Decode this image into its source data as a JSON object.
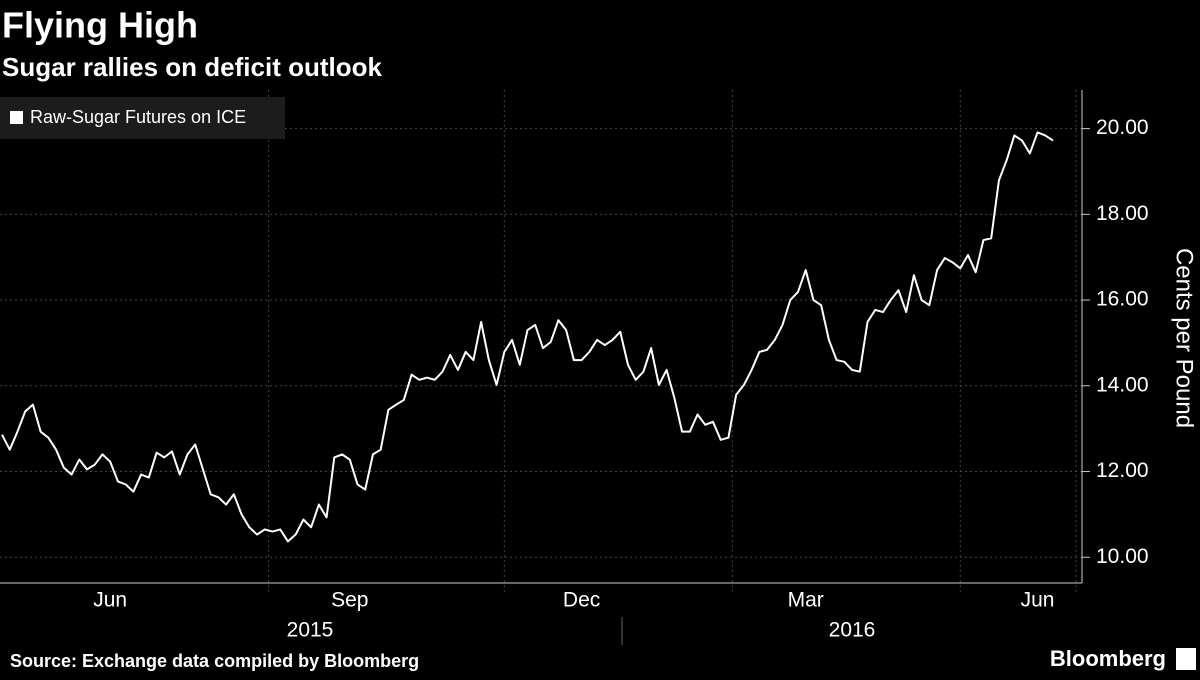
{
  "chart_data": {
    "type": "line",
    "title": "Flying High",
    "subtitle": "Sugar rallies on deficit outlook",
    "y_label": "Cents per Pound",
    "source": "Source: Exchange data compiled by Bloomberg",
    "brand": "Bloomberg",
    "x_group_labels": [
      "2015",
      "2016"
    ],
    "categories": [
      null,
      null,
      null,
      null,
      null,
      null,
      null,
      null,
      null,
      null,
      null,
      null,
      null,
      null,
      "Jun",
      null,
      null,
      null,
      null,
      null,
      null,
      null,
      null,
      null,
      null,
      null,
      null,
      null,
      null,
      null,
      null,
      null,
      null,
      null,
      null,
      null,
      null,
      null,
      null,
      null,
      null,
      null,
      null,
      null,
      null,
      "Sep",
      null,
      null,
      null,
      null,
      null,
      null,
      null,
      null,
      null,
      null,
      null,
      null,
      null,
      null,
      null,
      null,
      null,
      null,
      null,
      null,
      null,
      null,
      null,
      null,
      null,
      null,
      null,
      null,
      null,
      "Dec",
      null,
      null,
      null,
      null,
      null,
      null,
      null,
      null,
      null,
      null,
      null,
      null,
      null,
      null,
      null,
      null,
      null,
      null,
      null,
      null,
      null,
      null,
      null,
      null,
      null,
      null,
      null,
      null,
      "Mar",
      null,
      null,
      null,
      null,
      null,
      null,
      null,
      null,
      null,
      null,
      null,
      null,
      null,
      null,
      null,
      null,
      null,
      null,
      null,
      null,
      null,
      null,
      null,
      null,
      null,
      null,
      null,
      null,
      null,
      "Jun",
      null,
      null
    ],
    "series": [
      {
        "name": "Raw-Sugar Futures on ICE",
        "color": "#ffffff",
        "values": [
          12.86,
          12.51,
          12.93,
          13.4,
          13.56,
          12.93,
          12.79,
          12.51,
          12.09,
          11.93,
          12.28,
          12.05,
          12.16,
          12.4,
          12.23,
          11.77,
          11.7,
          11.53,
          11.93,
          11.86,
          12.44,
          12.33,
          12.47,
          11.93,
          12.4,
          12.63,
          12.05,
          11.47,
          11.4,
          11.23,
          11.47,
          11.0,
          10.7,
          10.53,
          10.65,
          10.6,
          10.65,
          10.37,
          10.53,
          10.88,
          10.7,
          11.23,
          10.93,
          12.33,
          12.4,
          12.28,
          11.7,
          11.58,
          12.4,
          12.51,
          13.44,
          13.56,
          13.67,
          14.26,
          14.14,
          14.19,
          14.14,
          14.33,
          14.72,
          14.37,
          14.79,
          14.6,
          15.49,
          14.6,
          14.02,
          14.79,
          15.07,
          14.49,
          15.3,
          15.42,
          14.88,
          15.02,
          15.53,
          15.3,
          14.6,
          14.6,
          14.79,
          15.07,
          14.95,
          15.07,
          15.26,
          14.49,
          14.14,
          14.33,
          14.88,
          14.02,
          14.37,
          13.72,
          12.93,
          12.93,
          13.33,
          13.09,
          13.16,
          12.74,
          12.79,
          13.79,
          14.02,
          14.37,
          14.79,
          14.84,
          15.07,
          15.42,
          16.0,
          16.19,
          16.7,
          16.0,
          15.88,
          15.07,
          14.6,
          14.56,
          14.37,
          14.33,
          15.49,
          15.77,
          15.72,
          16.0,
          16.23,
          15.72,
          16.58,
          16.0,
          15.88,
          16.7,
          16.98,
          16.88,
          16.74,
          17.05,
          16.65,
          17.4,
          17.44,
          18.79,
          19.26,
          19.84,
          19.72,
          19.42,
          19.91,
          19.84,
          19.72
        ]
      }
    ],
    "ylim": [
      9.4,
      20.9
    ],
    "yticks": [
      {
        "value": 10,
        "label": "10.00"
      },
      {
        "value": 12,
        "label": "12.00"
      },
      {
        "value": 14,
        "label": "14.00"
      },
      {
        "value": 16,
        "label": "16.00"
      },
      {
        "value": 18,
        "label": "18.00"
      },
      {
        "value": 20,
        "label": "20.00"
      }
    ],
    "grid": true,
    "legend": "top-left"
  }
}
